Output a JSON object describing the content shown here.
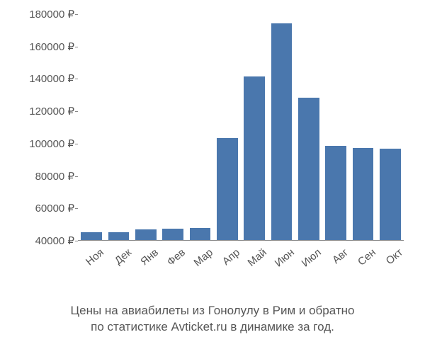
{
  "chart": {
    "type": "bar",
    "background_color": "#ffffff",
    "bar_color": "#4a77ad",
    "axis_color": "#888888",
    "text_color": "#555555",
    "font_family": "Arial",
    "tick_fontsize": 15,
    "caption_fontsize": 17,
    "currency_suffix": "₽",
    "ylim": [
      40000,
      180000
    ],
    "ytick_step": 20000,
    "yticks": [
      40000,
      60000,
      80000,
      100000,
      120000,
      140000,
      160000,
      180000
    ],
    "xtick_rotation_deg": -40,
    "bar_width_ratio": 0.78,
    "categories": [
      "Ноя",
      "Дек",
      "Янв",
      "Фев",
      "Мар",
      "Апр",
      "Май",
      "Июн",
      "Июл",
      "Авг",
      "Сен",
      "Окт"
    ],
    "values": [
      45000,
      45000,
      46500,
      47000,
      47500,
      103000,
      141000,
      174000,
      128000,
      98000,
      97000,
      96500
    ]
  },
  "caption": {
    "line1": "Цены на авиабилеты из Гонолулу в Рим и обратно",
    "line2": "по статистике Avticket.ru в динамике за год."
  }
}
